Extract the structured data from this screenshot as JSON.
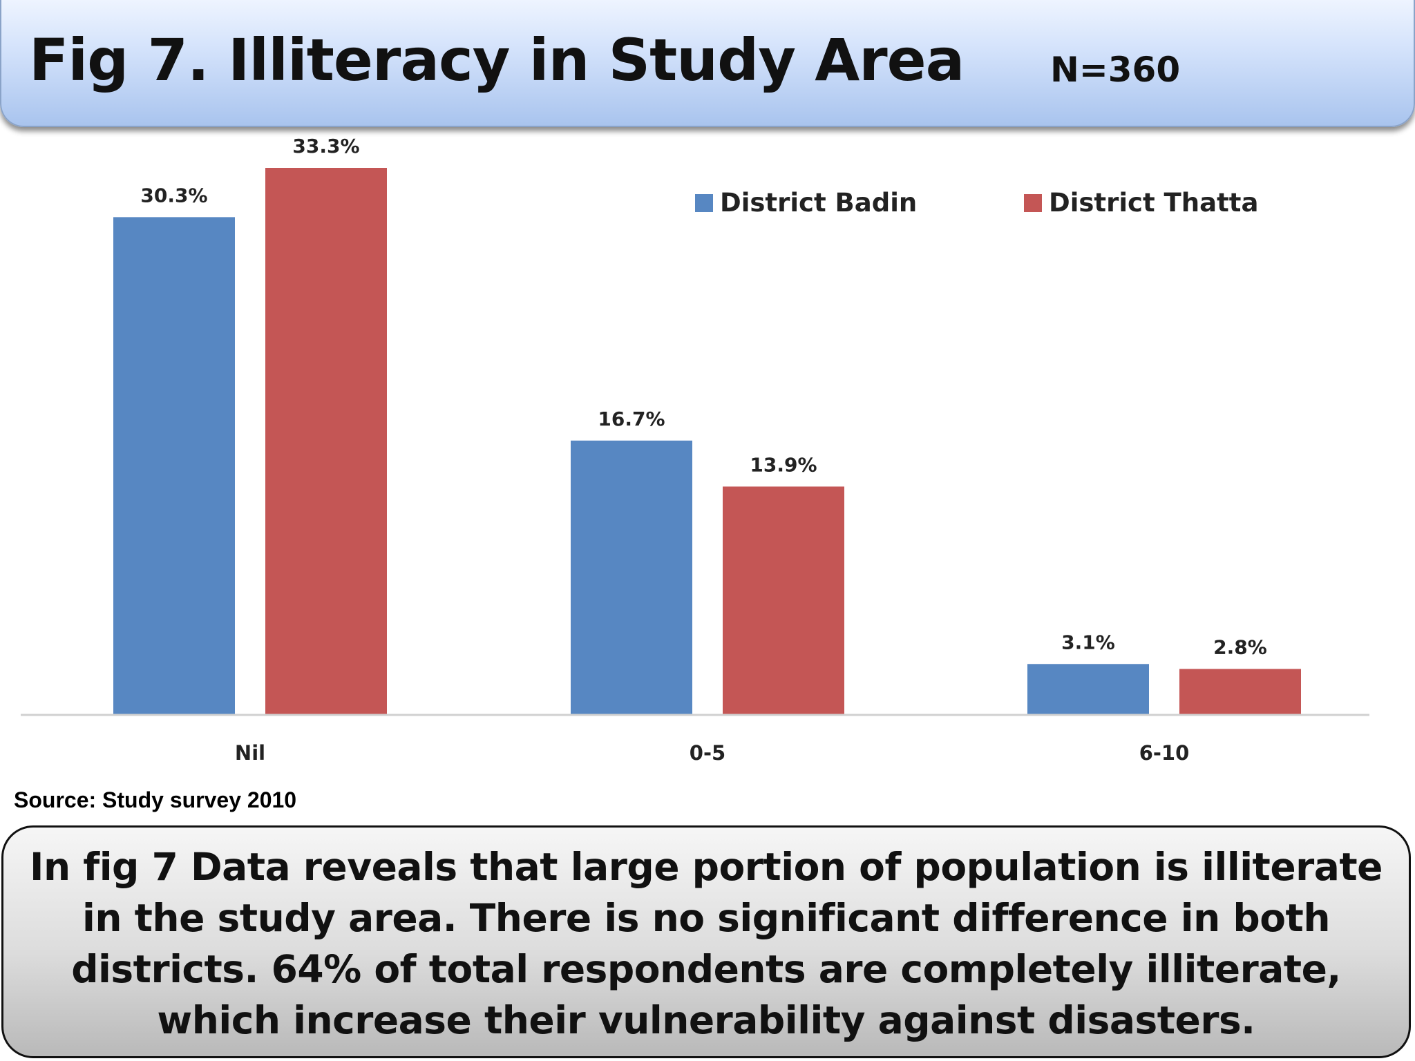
{
  "header": {
    "title": "Fig 7. Illiteracy in Study Area",
    "sample_size": "N=360"
  },
  "source": "Source: Study survey 2010",
  "summary": "In fig 7 Data reveals that large portion of  population is illiterate in the study area. There is no significant difference in both districts. 64% of total respondents are completely illiterate, which increase their vulnerability against disasters.",
  "colors": {
    "badin": "#5787c2",
    "thatta": "#c45655",
    "axis": "#d0d0d0"
  },
  "chart_data": {
    "type": "bar",
    "title": "Fig 7. Illiteracy in Study Area",
    "categories": [
      "Nil",
      "0-5",
      "6-10"
    ],
    "series": [
      {
        "name": "District Badin",
        "values": [
          30.3,
          16.7,
          3.1
        ],
        "labels": [
          "30.3%",
          "16.7%",
          "3.1%"
        ]
      },
      {
        "name": "District Thatta",
        "values": [
          33.3,
          13.9,
          2.8
        ],
        "labels": [
          "33.3%",
          "13.9%",
          "2.8%"
        ]
      }
    ],
    "unit": "%",
    "ylim": [
      0,
      36
    ],
    "grid": false,
    "legend": "top-right"
  }
}
